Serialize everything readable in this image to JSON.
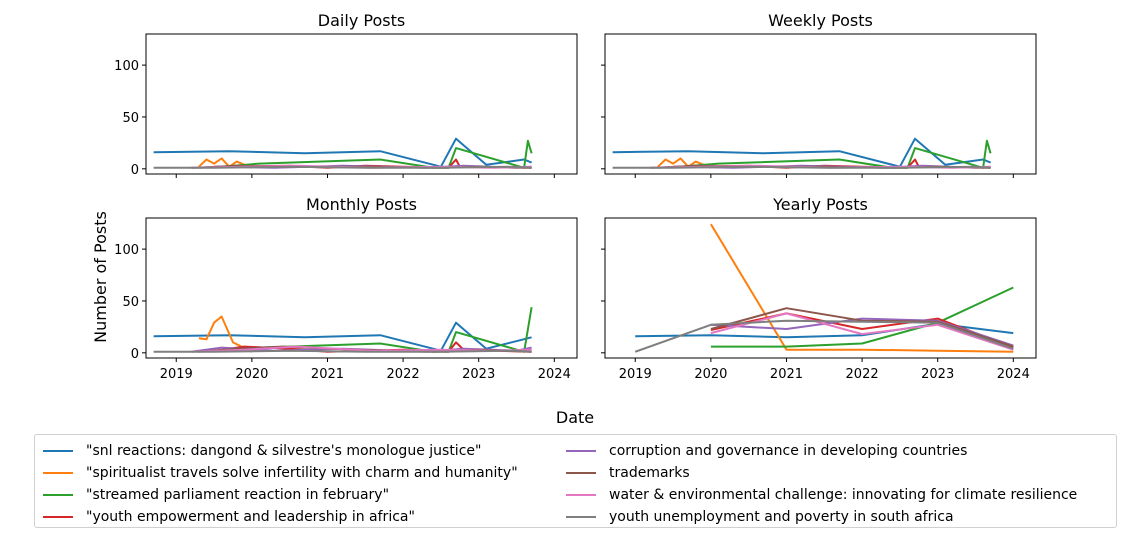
{
  "chart_data": {
    "type": "line",
    "ylabel": "Number of Posts",
    "xlabel": "Date",
    "xlim": [
      2018.6,
      2024.3
    ],
    "ylim": [
      -5,
      130
    ],
    "x_ticks": [
      2019,
      2020,
      2021,
      2022,
      2023,
      2024
    ],
    "y_ticks": [
      0,
      50,
      100
    ],
    "series_styles": [
      {
        "name": "\"snl reactions: dangond & silvestre's monologue justice\"",
        "color": "#1f77b4"
      },
      {
        "name": "\"spiritualist travels solve infertility with charm and humanity\"",
        "color": "#ff7f0e"
      },
      {
        "name": "\"streamed parliament reaction in february\"",
        "color": "#2ca02c"
      },
      {
        "name": "\"youth empowerment and leadership in africa\"",
        "color": "#d62728"
      },
      {
        "name": "corruption and governance in developing countries",
        "color": "#9467bd"
      },
      {
        "name": "trademarks",
        "color": "#8c564b"
      },
      {
        "name": "water & environmental challenge: innovating for climate resilience",
        "color": "#e377c2"
      },
      {
        "name": "youth unemployment and poverty in south africa",
        "color": "#7f7f7f"
      }
    ],
    "panels": [
      {
        "title": "Daily Posts",
        "series": [
          {
            "name": "\"snl reactions: dangond & silvestre's monologue justice\"",
            "x": [
              2018.7,
              2019.7,
              2020.7,
              2021.7,
              2022.5,
              2022.7,
              2023.1,
              2023.6,
              2023.7
            ],
            "y": [
              16,
              17,
              15,
              17,
              2,
              29,
              4,
              9,
              6
            ]
          },
          {
            "name": "\"spiritualist travels solve infertility with charm and humanity\"",
            "x": [
              2019.3,
              2019.4,
              2019.5,
              2019.6,
              2019.7,
              2019.8,
              2020.0
            ],
            "y": [
              2,
              9,
              5,
              10,
              2,
              7,
              1
            ]
          },
          {
            "name": "\"streamed parliament reaction in february\"",
            "x": [
              2019.6,
              2020.1,
              2021.7,
              2022.4,
              2022.6,
              2022.7,
              2023.6,
              2023.65,
              2023.7
            ],
            "y": [
              2,
              5,
              9,
              1,
              1,
              20,
              1,
              27,
              15
            ]
          },
          {
            "name": "\"youth empowerment and leadership in africa\"",
            "x": [
              2019.5,
              2020.5,
              2021.0,
              2021.5,
              2022.0,
              2022.6,
              2022.7,
              2022.75,
              2023.7
            ],
            "y": [
              2,
              3,
              1,
              3,
              2,
              1,
              9,
              2,
              1
            ]
          },
          {
            "name": "corruption and governance in developing countries",
            "x": [
              2019.2,
              2019.6,
              2020.3,
              2021.2,
              2022.3,
              2022.8,
              2023.5,
              2023.7
            ],
            "y": [
              1,
              2,
              1,
              3,
              1,
              3,
              1,
              2
            ]
          },
          {
            "name": "trademarks",
            "x": [
              2019.3,
              2019.8,
              2020.4,
              2021.4,
              2022.4,
              2023.0,
              2023.7
            ],
            "y": [
              1,
              3,
              2,
              2,
              1,
              2,
              1
            ]
          },
          {
            "name": "water & environmental challenge: innovating for climate resilience",
            "x": [
              2019.2,
              2019.9,
              2020.6,
              2021.6,
              2022.5,
              2023.2,
              2023.7
            ],
            "y": [
              1,
              2,
              3,
              1,
              2,
              1,
              2
            ]
          },
          {
            "name": "youth unemployment and poverty in south africa",
            "x": [
              2018.7,
              2019.5,
              2020.5,
              2021.5,
              2022.5,
              2023.5,
              2023.7
            ],
            "y": [
              1,
              1,
              2,
              1,
              1,
              2,
              1
            ]
          }
        ]
      },
      {
        "title": "Weekly Posts",
        "series": [
          {
            "name": "\"snl reactions: dangond & silvestre's monologue justice\"",
            "x": [
              2018.7,
              2019.7,
              2020.7,
              2021.7,
              2022.5,
              2022.7,
              2023.1,
              2023.6,
              2023.7
            ],
            "y": [
              16,
              17,
              15,
              17,
              2,
              29,
              4,
              9,
              6
            ]
          },
          {
            "name": "\"spiritualist travels solve infertility with charm and humanity\"",
            "x": [
              2019.3,
              2019.4,
              2019.5,
              2019.6,
              2019.7,
              2019.8,
              2020.0
            ],
            "y": [
              2,
              9,
              5,
              10,
              2,
              7,
              1
            ]
          },
          {
            "name": "\"streamed parliament reaction in february\"",
            "x": [
              2019.6,
              2020.1,
              2021.7,
              2022.4,
              2022.6,
              2022.7,
              2023.6,
              2023.65,
              2023.7
            ],
            "y": [
              2,
              5,
              9,
              1,
              1,
              20,
              1,
              27,
              15
            ]
          },
          {
            "name": "\"youth empowerment and leadership in africa\"",
            "x": [
              2019.5,
              2020.5,
              2021.0,
              2021.5,
              2022.0,
              2022.6,
              2022.7,
              2022.75,
              2023.7
            ],
            "y": [
              2,
              3,
              1,
              3,
              2,
              1,
              9,
              2,
              1
            ]
          },
          {
            "name": "corruption and governance in developing countries",
            "x": [
              2019.2,
              2019.6,
              2020.3,
              2021.2,
              2022.3,
              2022.8,
              2023.5,
              2023.7
            ],
            "y": [
              1,
              2,
              1,
              3,
              1,
              3,
              1,
              2
            ]
          },
          {
            "name": "trademarks",
            "x": [
              2019.3,
              2019.8,
              2020.4,
              2021.4,
              2022.4,
              2023.0,
              2023.7
            ],
            "y": [
              1,
              3,
              2,
              2,
              1,
              2,
              1
            ]
          },
          {
            "name": "water & environmental challenge: innovating for climate resilience",
            "x": [
              2019.2,
              2019.9,
              2020.6,
              2021.6,
              2022.5,
              2023.2,
              2023.7
            ],
            "y": [
              1,
              2,
              3,
              1,
              2,
              1,
              2
            ]
          },
          {
            "name": "youth unemployment and poverty in south africa",
            "x": [
              2018.7,
              2019.5,
              2020.5,
              2021.5,
              2022.5,
              2023.5,
              2023.7
            ],
            "y": [
              1,
              1,
              2,
              1,
              1,
              2,
              1
            ]
          }
        ]
      },
      {
        "title": "Monthly Posts",
        "series": [
          {
            "name": "\"snl reactions: dangond & silvestre's monologue justice\"",
            "x": [
              2018.7,
              2019.7,
              2020.7,
              2021.7,
              2022.5,
              2022.7,
              2023.1,
              2023.7
            ],
            "y": [
              16,
              17,
              15,
              17,
              2,
              29,
              4,
              15
            ]
          },
          {
            "name": "\"spiritualist travels solve infertility with charm and humanity\"",
            "x": [
              2019.3,
              2019.4,
              2019.5,
              2019.6,
              2019.75,
              2020.0
            ],
            "y": [
              14,
              13,
              29,
              35,
              10,
              1
            ]
          },
          {
            "name": "\"streamed parliament reaction in february\"",
            "x": [
              2019.6,
              2020.1,
              2021.7,
              2022.4,
              2022.6,
              2022.7,
              2023.6,
              2023.7
            ],
            "y": [
              2,
              5,
              9,
              1,
              1,
              20,
              1,
              44
            ]
          },
          {
            "name": "\"youth empowerment and leadership in africa\"",
            "x": [
              2019.5,
              2019.9,
              2020.5,
              2021.0,
              2022.0,
              2022.6,
              2022.7,
              2022.8,
              2023.7
            ],
            "y": [
              2,
              6,
              4,
              1,
              3,
              1,
              10,
              3,
              1
            ]
          },
          {
            "name": "corruption and governance in developing countries",
            "x": [
              2019.2,
              2019.6,
              2020.3,
              2021.2,
              2022.3,
              2022.8,
              2023.5,
              2023.7
            ],
            "y": [
              1,
              5,
              2,
              4,
              1,
              4,
              2,
              5
            ]
          },
          {
            "name": "trademarks",
            "x": [
              2019.3,
              2019.8,
              2020.4,
              2021.4,
              2022.4,
              2023.0,
              2023.7
            ],
            "y": [
              1,
              4,
              6,
              3,
              1,
              3,
              1
            ]
          },
          {
            "name": "water & environmental challenge: innovating for climate resilience",
            "x": [
              2019.2,
              2019.9,
              2020.6,
              2021.6,
              2022.5,
              2023.2,
              2023.7
            ],
            "y": [
              1,
              3,
              6,
              2,
              3,
              2,
              3
            ]
          },
          {
            "name": "youth unemployment and poverty in south africa",
            "x": [
              2018.7,
              2019.5,
              2020.5,
              2021.5,
              2022.5,
              2023.5,
              2023.7
            ],
            "y": [
              1,
              1,
              2,
              1,
              1,
              2,
              1
            ]
          }
        ]
      },
      {
        "title": "Yearly Posts",
        "series": [
          {
            "name": "\"snl reactions: dangond & silvestre's monologue justice\"",
            "x": [
              2019,
              2020,
              2021,
              2022,
              2023,
              2024
            ],
            "y": [
              16,
              17,
              15,
              17,
              28,
              19
            ]
          },
          {
            "name": "\"spiritualist travels solve infertility with charm and humanity\"",
            "x": [
              2020,
              2021,
              2022,
              2023,
              2024
            ],
            "y": [
              124,
              3,
              3,
              2,
              1
            ]
          },
          {
            "name": "\"streamed parliament reaction in february\"",
            "x": [
              2020,
              2021,
              2022,
              2023,
              2024
            ],
            "y": [
              6,
              6,
              9,
              29,
              63
            ]
          },
          {
            "name": "\"youth empowerment and leadership in africa\"",
            "x": [
              2020,
              2021,
              2022,
              2023,
              2024
            ],
            "y": [
              22,
              38,
              23,
              33,
              5
            ]
          },
          {
            "name": "corruption and governance in developing countries",
            "x": [
              2020,
              2021,
              2022,
              2023,
              2024
            ],
            "y": [
              27,
              23,
              33,
              31,
              7
            ]
          },
          {
            "name": "trademarks",
            "x": [
              2020,
              2021,
              2022,
              2023,
              2024
            ],
            "y": [
              23,
              43,
              31,
              30,
              6
            ]
          },
          {
            "name": "water & environmental challenge: innovating for climate resilience",
            "x": [
              2020,
              2021,
              2022,
              2023,
              2024
            ],
            "y": [
              19,
              38,
              18,
              27,
              3
            ]
          },
          {
            "name": "youth unemployment and poverty in south africa",
            "x": [
              2019,
              2020,
              2021,
              2022,
              2023,
              2024
            ],
            "y": [
              1,
              27,
              31,
              30,
              29,
              4
            ]
          }
        ]
      }
    ]
  },
  "legend": {
    "left_items": [
      {
        "label": "\"snl reactions: dangond & silvestre's monologue justice\"",
        "color": "#1f77b4"
      },
      {
        "label": "\"spiritualist travels solve infertility with charm and humanity\"",
        "color": "#ff7f0e"
      },
      {
        "label": "\"streamed parliament reaction in february\"",
        "color": "#2ca02c"
      },
      {
        "label": "\"youth empowerment and leadership in africa\"",
        "color": "#d62728"
      }
    ],
    "right_items": [
      {
        "label": "corruption and governance in developing countries",
        "color": "#9467bd"
      },
      {
        "label": "trademarks",
        "color": "#8c564b"
      },
      {
        "label": "water & environmental challenge: innovating for climate resilience",
        "color": "#e377c2"
      },
      {
        "label": "youth unemployment and poverty in south africa",
        "color": "#7f7f7f"
      }
    ]
  }
}
